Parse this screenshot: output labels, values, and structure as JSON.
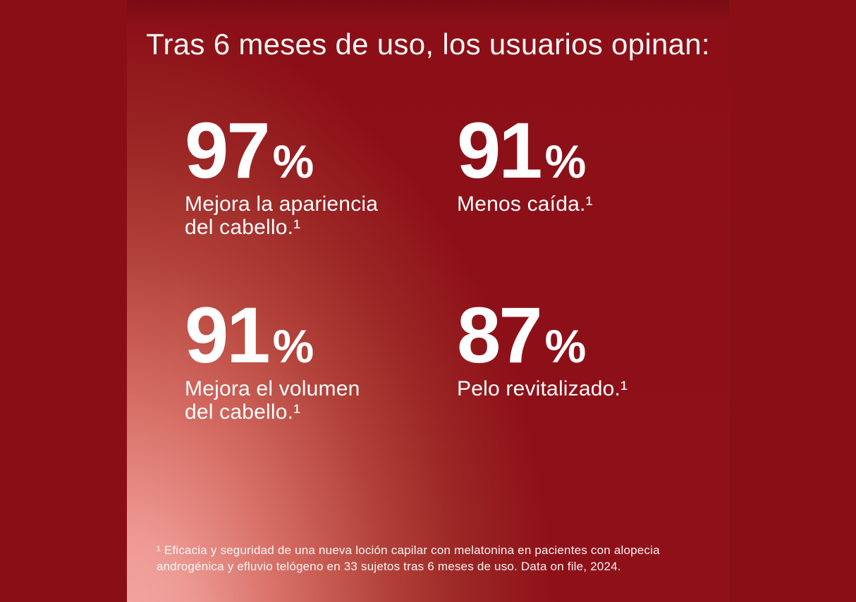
{
  "headline": "Tras 6 meses de uso, los usuarios opinan:",
  "stats": [
    {
      "value": "97",
      "unit": "%",
      "lines": [
        "Mejora la apariencia",
        "del cabello.¹"
      ]
    },
    {
      "value": "91",
      "unit": "%",
      "lines": [
        "Menos caída.¹"
      ]
    },
    {
      "value": "91",
      "unit": "%",
      "lines": [
        "Mejora el volumen",
        "del cabello.¹"
      ]
    },
    {
      "value": "87",
      "unit": "%",
      "lines": [
        "Pelo revitalizado.¹"
      ]
    }
  ],
  "footnote": {
    "lines": [
      "¹ Eficacia y seguridad de una nueva loción capilar con melatonina en pacientes con alopecia",
      "androgénica y efluvio telógeno en 33 sujetos tras 6 meses de uso. Data on file, 2024."
    ]
  },
  "colors": {
    "background_dark": "#8A0E15",
    "glow_pink": "#F4A8A3",
    "text": "#FFFFFF"
  }
}
